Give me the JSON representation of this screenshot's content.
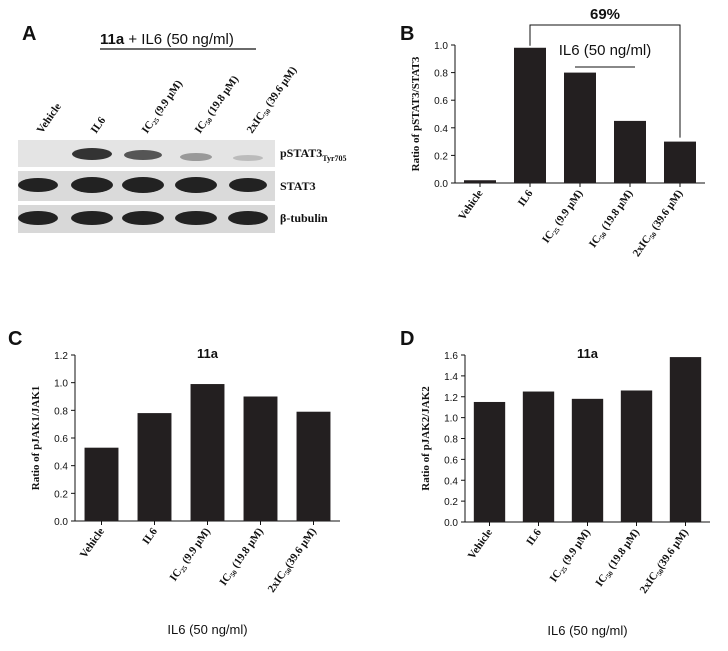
{
  "blot": {
    "panel": "A",
    "header_bold": "11a",
    "header_rest": "+ IL6 (50 ng/ml)",
    "lanes": [
      "Vehicle",
      "IL6",
      "IC₂₅ (9.9 μM)",
      "IC₅₀ (19.8 μM)",
      "2xIC₅₀ (39.6 μM)"
    ],
    "rows": [
      {
        "label": "pSTAT3",
        "subscript": "Tyr705"
      },
      {
        "label": "STAT3"
      },
      {
        "label": "β-tubulin"
      }
    ]
  },
  "chart_data": [
    {
      "type": "bar",
      "panel": "B",
      "ylabel": "Ratio of pSTAT3/STAT3",
      "annotations": [
        "69%",
        "IL6 (50 ng/ml)"
      ],
      "categories": [
        "Vehicle",
        "IL6",
        "IC₂₅ (9.9 μM)",
        "IC₅₀ (19.8 μM)",
        "2xIC₅₀ (39.6 μM)"
      ],
      "values": [
        0.02,
        0.98,
        0.8,
        0.45,
        0.3
      ],
      "color": "#231f20",
      "ylim": [
        0,
        1.0
      ],
      "yticks": [
        {
          "value": 0,
          "label": "0.0"
        },
        0.2,
        0.4,
        0.6,
        0.8,
        {
          "value": 1,
          "label": "1.0"
        }
      ]
    },
    {
      "type": "bar",
      "panel": "C",
      "title": "11a",
      "ylabel": "Ratio of pJAK1/JAK1",
      "xlabel": "IL6 (50 ng/ml)",
      "categories": [
        "Vehicle",
        "IL6",
        "IC₂₅ (9.9 μM)",
        "IC₅₀ (19.8 μM)",
        "2xIC₅₀(39.6 μM)"
      ],
      "values": [
        0.53,
        0.78,
        0.99,
        0.9,
        0.79
      ],
      "color": "#231f20",
      "ylim": [
        0,
        1.2
      ],
      "yticks": [
        {
          "value": 0,
          "label": "0.0"
        },
        0.2,
        0.4,
        0.6,
        0.8,
        {
          "value": 1,
          "label": "1.0"
        },
        1.2
      ]
    },
    {
      "type": "bar",
      "panel": "D",
      "title": "11a",
      "ylabel": "Ratio of pJAK2/JAK2",
      "xlabel": "IL6 (50 ng/ml)",
      "categories": [
        "Vehicle",
        "IL6",
        "IC₂₅ (9.9 μM)",
        "IC₅₀ (19.8 μM)",
        "2xIC₅₀(39.6 μM)"
      ],
      "values": [
        1.15,
        1.25,
        1.18,
        1.26,
        1.58
      ],
      "color": "#231f20",
      "ylim": [
        0,
        1.6
      ],
      "yticks": [
        {
          "value": 0,
          "label": "0.0"
        },
        0.2,
        0.4,
        0.6,
        0.8,
        {
          "value": 1,
          "label": "1.0"
        },
        1.2,
        1.4,
        1.6
      ]
    }
  ]
}
